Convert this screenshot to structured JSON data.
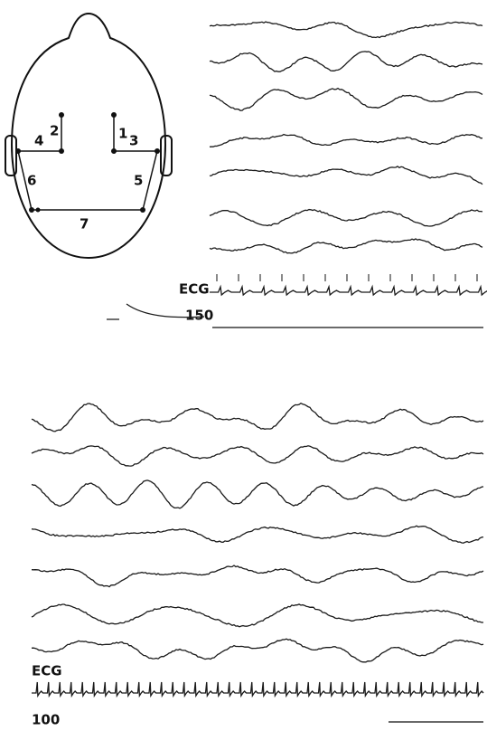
{
  "head_diagram": {
    "electrode_labels": [
      "1",
      "2",
      "3",
      "4",
      "5",
      "6",
      "7"
    ]
  },
  "top_panel": {
    "ecg_label": "ECG",
    "rate_label": "150"
  },
  "bottom_panel": {
    "ecg_label": "ECG",
    "rate_label": "100"
  }
}
